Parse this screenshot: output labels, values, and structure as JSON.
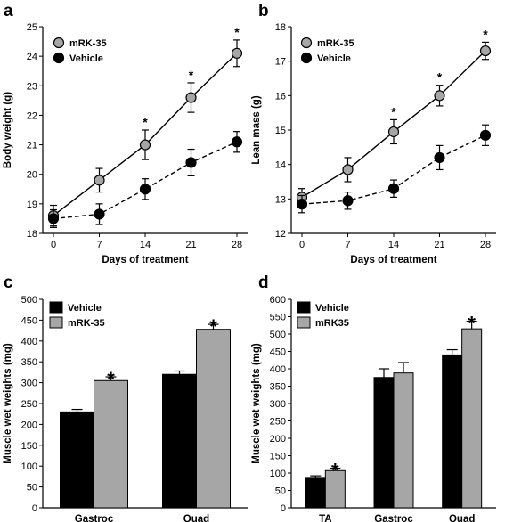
{
  "chart_data": [
    {
      "panel": "a",
      "type": "line",
      "xlabel": "Days of treatment",
      "ylabel": "Body weight (g)",
      "x": [
        0,
        7,
        14,
        21,
        28
      ],
      "xticks": [
        "0",
        "7",
        "14",
        "21",
        "28"
      ],
      "xlim": [
        0,
        28
      ],
      "ylim": [
        18,
        25
      ],
      "yticks": [
        "18",
        "19",
        "20",
        "21",
        "22",
        "23",
        "24",
        "25"
      ],
      "legend_position": "top-left",
      "series": [
        {
          "name": "mRK-35",
          "values": [
            18.6,
            19.8,
            21.0,
            22.6,
            24.1
          ],
          "errors": [
            0.35,
            0.4,
            0.5,
            0.5,
            0.45
          ],
          "color": "#a6a6a6",
          "line": "solid"
        },
        {
          "name": "Vehicle",
          "values": [
            18.5,
            18.65,
            19.5,
            20.4,
            21.1
          ],
          "errors": [
            0.3,
            0.35,
            0.35,
            0.45,
            0.35
          ],
          "color": "#000000",
          "line": "dashed"
        }
      ],
      "significance": [
        "",
        "",
        "*",
        "*",
        "*"
      ]
    },
    {
      "panel": "b",
      "type": "line",
      "xlabel": "Days of treatment",
      "ylabel": "Lean mass (g)",
      "x": [
        0,
        7,
        14,
        21,
        28
      ],
      "xticks": [
        "0",
        "7",
        "14",
        "21",
        "28"
      ],
      "xlim": [
        0,
        28
      ],
      "ylim": [
        12,
        18
      ],
      "yticks": [
        "12",
        "13",
        "14",
        "15",
        "16",
        "17",
        "18"
      ],
      "legend_position": "top-left",
      "series": [
        {
          "name": "mRK-35",
          "values": [
            13.05,
            13.85,
            14.95,
            16.0,
            17.3
          ],
          "errors": [
            0.25,
            0.35,
            0.35,
            0.3,
            0.25
          ],
          "color": "#a6a6a6",
          "line": "solid"
        },
        {
          "name": "Vehicle",
          "values": [
            12.85,
            12.95,
            13.3,
            14.2,
            14.85
          ],
          "errors": [
            0.25,
            0.25,
            0.25,
            0.35,
            0.3
          ],
          "color": "#000000",
          "line": "dashed"
        }
      ],
      "significance": [
        "",
        "",
        "*",
        "*",
        "*"
      ]
    },
    {
      "panel": "c",
      "type": "bar",
      "ylabel": "Muscle wet weights (mg)",
      "categories": [
        "Gastroc",
        "Quad"
      ],
      "ylim": [
        0,
        500
      ],
      "yticks": [
        "0",
        "50",
        "100",
        "150",
        "200",
        "250",
        "300",
        "350",
        "400",
        "450",
        "500"
      ],
      "legend_position": "top-left",
      "series": [
        {
          "name": "Vehicle",
          "values": [
            230,
            320
          ],
          "errors": [
            6,
            8
          ],
          "color": "#000000"
        },
        {
          "name": "mRK-35",
          "values": [
            305,
            428
          ],
          "errors": [
            9,
            12
          ],
          "color": "#a6a6a6"
        }
      ],
      "significance": [
        "*",
        "*"
      ]
    },
    {
      "panel": "d",
      "type": "bar",
      "ylabel": "Muscle wet weights (mg)",
      "categories": [
        "TA",
        "Gastroc",
        "Quad"
      ],
      "ylim": [
        0,
        600
      ],
      "yticks": [
        "0",
        "50",
        "100",
        "150",
        "200",
        "250",
        "300",
        "350",
        "400",
        "450",
        "500",
        "550",
        "600"
      ],
      "legend_position": "top-left",
      "series": [
        {
          "name": "Vehicle",
          "values": [
            85,
            375,
            440
          ],
          "errors": [
            7,
            25,
            15
          ],
          "color": "#000000"
        },
        {
          "name": "mRK35",
          "values": [
            107,
            388,
            515
          ],
          "errors": [
            7,
            30,
            22
          ],
          "color": "#a6a6a6"
        }
      ],
      "significance": [
        "*",
        "",
        "*"
      ]
    }
  ]
}
